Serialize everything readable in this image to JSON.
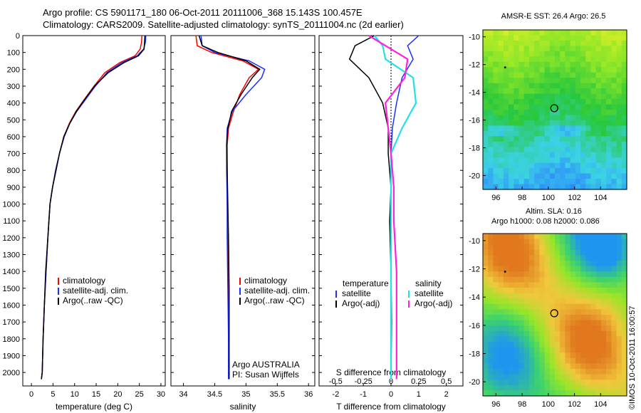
{
  "header": {
    "line1": "Argo profile: CS 5901171_180 06-Oct-2011 20111006_368 15.143S 100.457E",
    "line2": "Climatology: CARS2009. Satellite-adjusted climatology: synTS_20111004.nc (2d earlier)"
  },
  "stamp": "©IMOS 10-Oct-2011 16:00:57",
  "colors": {
    "climatology": "#ff0000",
    "satellite": "#1a2fff",
    "argo": "#000000",
    "satellite_salinity": "#22e0e8",
    "argo_salinity": "#ff22dd"
  },
  "chart_data": [
    {
      "type": "line",
      "xlabel": "temperature (deg C)",
      "ylabel": "",
      "xlim": [
        -2,
        31
      ],
      "ylim": [
        2080,
        0
      ],
      "xticks": [
        "0",
        "5",
        "10",
        "15",
        "20",
        "25",
        "30"
      ],
      "yticks": [
        "0",
        "100",
        "200",
        "300",
        "400",
        "500",
        "600",
        "700",
        "800",
        "900",
        "1000",
        "1100",
        "1200",
        "1300",
        "1400",
        "1500",
        "1600",
        "1700",
        "1800",
        "1900",
        "2000"
      ],
      "legend": [
        "climatology",
        "satellite-adj. clim.",
        "Argo(..raw -QC)"
      ],
      "series": [
        {
          "name": "climatology",
          "x": [
            25.6,
            25.5,
            25.2,
            24.0,
            20.5,
            17.0,
            14.5,
            12.2,
            10.3,
            8.8,
            7.5,
            6.5,
            5.6,
            4.9,
            4.3,
            3.8,
            3.4,
            3.0,
            2.7,
            2.5,
            2.3
          ],
          "y": [
            0,
            40,
            80,
            120,
            160,
            220,
            300,
            380,
            450,
            520,
            600,
            700,
            800,
            900,
            1000,
            1200,
            1400,
            1600,
            1800,
            2000,
            2040
          ]
        },
        {
          "name": "satellite-adj. clim.",
          "x": [
            26.5,
            26.4,
            26.0,
            24.5,
            21.0,
            17.5,
            14.8,
            12.5,
            10.5,
            8.9,
            7.6,
            6.5,
            5.6,
            4.9,
            4.3,
            3.8,
            3.4,
            3.0,
            2.7,
            2.5,
            2.3
          ],
          "y": [
            0,
            40,
            80,
            120,
            160,
            220,
            300,
            380,
            450,
            520,
            600,
            700,
            800,
            900,
            1000,
            1200,
            1400,
            1600,
            1800,
            2000,
            2040
          ]
        },
        {
          "name": "Argo(..raw -QC)",
          "x": [
            26.3,
            26.2,
            26.1,
            24.8,
            21.5,
            17.8,
            14.6,
            12.3,
            10.4,
            8.9,
            7.5,
            6.5,
            5.7,
            4.9,
            4.3,
            3.8,
            3.3,
            3.0,
            2.7,
            2.5,
            2.3
          ],
          "y": [
            0,
            40,
            80,
            120,
            160,
            220,
            300,
            380,
            450,
            520,
            600,
            700,
            800,
            900,
            1000,
            1200,
            1400,
            1600,
            1800,
            2000,
            2040
          ]
        }
      ]
    },
    {
      "type": "line",
      "xlabel": "salinity",
      "ylabel": "",
      "xlim": [
        33.8,
        36.1
      ],
      "ylim": [
        2080,
        0
      ],
      "xticks": [
        "34",
        "34.5",
        "35",
        "35.5",
        "36"
      ],
      "legend": [
        "climatology",
        "satellite-adj. clim.",
        "Argo(..raw -QC)"
      ],
      "annotations": [
        "Argo AUSTRALIA",
        "PI: Susan Wijffels"
      ],
      "series": [
        {
          "name": "climatology",
          "x": [
            34.2,
            34.22,
            34.45,
            34.95,
            35.2,
            35.05,
            34.9,
            34.8,
            34.72,
            34.7,
            34.7,
            34.7,
            34.71,
            34.72,
            34.72,
            34.73,
            34.73
          ],
          "y": [
            0,
            60,
            100,
            150,
            200,
            250,
            350,
            450,
            550,
            650,
            800,
            1000,
            1200,
            1500,
            1800,
            2000,
            2040
          ]
        },
        {
          "name": "satellite-adj. clim.",
          "x": [
            34.28,
            34.3,
            34.5,
            35.05,
            35.3,
            35.25,
            35.0,
            34.78,
            34.7,
            34.69,
            34.69,
            34.7,
            34.7,
            34.71,
            34.72,
            34.72,
            34.72
          ],
          "y": [
            0,
            60,
            100,
            150,
            200,
            250,
            350,
            450,
            550,
            650,
            800,
            1000,
            1200,
            1500,
            1800,
            2000,
            2040
          ]
        },
        {
          "name": "Argo(..raw -QC)",
          "x": [
            34.25,
            34.3,
            34.55,
            35.0,
            35.22,
            35.1,
            34.92,
            34.77,
            34.71,
            34.69,
            34.7,
            34.71,
            34.72,
            34.73,
            34.73,
            34.73,
            34.73
          ],
          "y": [
            0,
            60,
            100,
            150,
            200,
            250,
            350,
            450,
            550,
            650,
            800,
            1000,
            1200,
            1500,
            1800,
            2000,
            2040
          ]
        }
      ]
    },
    {
      "type": "line",
      "xlabel": "T difference from climatology",
      "xlabel2": "S difference from climatology",
      "xlim": [
        -2.6,
        2.6
      ],
      "ylim": [
        2080,
        0
      ],
      "xticks": [
        "-2",
        "-1",
        "0",
        "1",
        "2"
      ],
      "xticks_s": [
        "-0.5",
        "-0.25",
        "0",
        "0.25",
        "0.5"
      ],
      "legend_headers": [
        "temperature",
        "salinity"
      ],
      "legend": [
        "satellite",
        "Argo(-adj)",
        "satellite",
        "Argo(-adj)"
      ],
      "series": [
        {
          "name": "satellite",
          "x": [
            1.0,
            0.6,
            0.8,
            0.4,
            0.2,
            0.05,
            0.0,
            0.0,
            0.0,
            0.0,
            0.0,
            0.0,
            0.0
          ],
          "y": [
            0,
            60,
            140,
            250,
            400,
            550,
            700,
            900,
            1100,
            1400,
            1700,
            2000,
            2040
          ]
        },
        {
          "name": "Argo(-adj)",
          "x": [
            -0.6,
            -1.3,
            -1.5,
            -0.8,
            -0.3,
            -0.1,
            -0.1,
            0.0,
            -0.05,
            0.0,
            0.02,
            0.0,
            0.0
          ],
          "y": [
            0,
            60,
            140,
            250,
            400,
            550,
            700,
            900,
            1100,
            1400,
            1700,
            2000,
            2040
          ]
        },
        {
          "name": "satellite",
          "x": [
            -0.6,
            -0.3,
            -0.2,
            0.8,
            0.9,
            0.4,
            0.0,
            0.0,
            0.0,
            0.0,
            0.0,
            0.0,
            0.0
          ],
          "y": [
            0,
            60,
            140,
            250,
            400,
            550,
            700,
            900,
            1100,
            1400,
            1700,
            2000,
            2040
          ]
        },
        {
          "name": "Argo(-adj)",
          "x": [
            -0.8,
            -0.2,
            0.6,
            0.5,
            -0.2,
            -0.1,
            0.0,
            0.1,
            0.1,
            0.2,
            0.2,
            0.2,
            0.2
          ],
          "y": [
            0,
            60,
            140,
            250,
            400,
            550,
            700,
            900,
            1100,
            1400,
            1700,
            2000,
            2040
          ]
        }
      ]
    },
    {
      "type": "heatmap",
      "title": "AMSR-E SST: 26.4  Argo: 26.5",
      "xlim": [
        95,
        106
      ],
      "ylim": [
        -21,
        -9.5
      ],
      "xticks": [
        "96",
        "98",
        "100",
        "102",
        "104"
      ],
      "yticks": [
        "-10",
        "-12",
        "-14",
        "-16",
        "-18",
        "-20"
      ],
      "marker": [
        100.457,
        -15.143
      ]
    },
    {
      "type": "heatmap",
      "title": "Altim. SLA: 0.16",
      "subtitle": "Argo h1000: 0.08 h2000: 0.086",
      "xlim": [
        95,
        106
      ],
      "ylim": [
        -21,
        -9.5
      ],
      "xticks": [
        "96",
        "98",
        "100",
        "102",
        "104"
      ],
      "yticks": [
        "-10",
        "-12",
        "-14",
        "-16",
        "-18",
        "-20"
      ],
      "marker": [
        100.457,
        -15.143
      ]
    }
  ]
}
